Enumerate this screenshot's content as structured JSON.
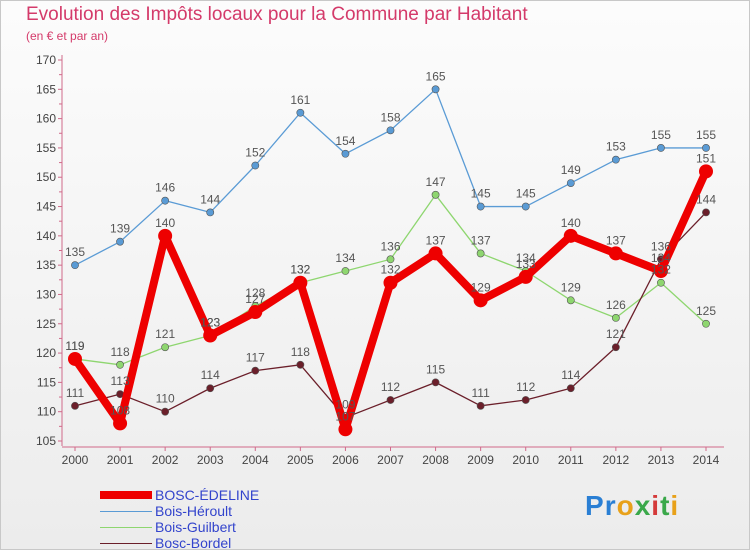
{
  "title": "Evolution des Impôts locaux pour la Commune par Habitant",
  "subtitle": "(en € et par an)",
  "logo": {
    "letters": [
      "P",
      "r",
      "o",
      "x",
      "i",
      "t",
      "i"
    ],
    "colors": [
      "#2a7fd4",
      "#2a7fd4",
      "#e8a11a",
      "#3aa84a",
      "#d43a3a",
      "#3aa84a",
      "#e8a11a"
    ]
  },
  "chart_data": {
    "type": "line",
    "title": "Evolution des Impôts locaux pour la Commune par Habitant",
    "subtitle": "(en € et par an)",
    "x": [
      "2000",
      "2001",
      "2002",
      "2003",
      "2004",
      "2005",
      "2006",
      "2007",
      "2008",
      "2009",
      "2010",
      "2011",
      "2012",
      "2013",
      "2014"
    ],
    "ylim": [
      105,
      170
    ],
    "yticks": [
      105,
      110,
      115,
      120,
      125,
      130,
      135,
      140,
      145,
      150,
      155,
      160,
      165,
      170
    ],
    "grid": false,
    "legend_position": "bottom",
    "series": [
      {
        "name": "Bois-Héroult",
        "color": "#5a9bd5",
        "values": [
          135,
          139,
          146,
          144,
          152,
          161,
          154,
          158,
          165,
          145,
          145,
          149,
          153,
          155,
          155
        ]
      },
      {
        "name": "Bois-Guilbert",
        "color": "#8ed66f",
        "values": [
          119,
          118,
          121,
          123,
          128,
          132,
          134,
          136,
          147,
          137,
          134,
          129,
          126,
          132,
          125
        ]
      },
      {
        "name": "Bosc-Bordel",
        "color": "#6b1f2a",
        "values": [
          111,
          113,
          110,
          114,
          117,
          118,
          109,
          112,
          115,
          111,
          112,
          114,
          121,
          136,
          144
        ]
      },
      {
        "name": "BOSC-ÉDELINE",
        "color": "#ee0000",
        "values": [
          119,
          108,
          140,
          123,
          127,
          132,
          107,
          132,
          137,
          129,
          133,
          140,
          137,
          134,
          151
        ]
      }
    ]
  },
  "legend": [
    {
      "name": "BOSC-ÉDELINE",
      "color": "#ee0000",
      "weight": 8
    },
    {
      "name": "Bois-Héroult",
      "color": "#5a9bd5",
      "weight": 1
    },
    {
      "name": "Bois-Guilbert",
      "color": "#8ed66f",
      "weight": 1
    },
    {
      "name": "Bosc-Bordel",
      "color": "#6b1f2a",
      "weight": 1
    }
  ]
}
